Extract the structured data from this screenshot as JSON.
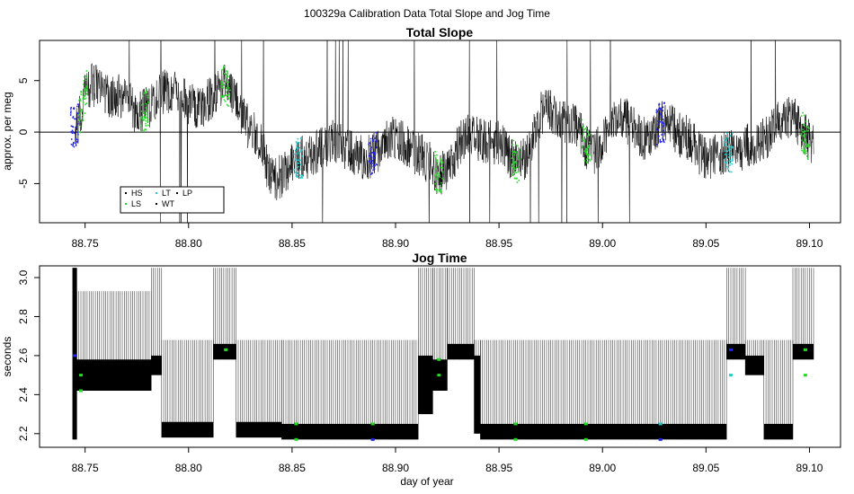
{
  "figure": {
    "title": "100329a   Calibration Data Total Slope and Jog Time",
    "xlabel": "day of year"
  },
  "chart_data": [
    {
      "type": "line",
      "title": "Total Slope",
      "ylabel": "approx. per meg",
      "xlim": [
        88.728,
        89.115
      ],
      "ylim": [
        -8.8,
        8.9
      ],
      "x_ticks": [
        88.75,
        88.8,
        88.85,
        88.9,
        88.95,
        89.0,
        89.05,
        89.1
      ],
      "x_tick_labels": [
        "88.75",
        "88.80",
        "88.85",
        "88.90",
        "88.95",
        "89.00",
        "89.05",
        "89.10"
      ],
      "y_ticks": [
        -5,
        0,
        5
      ],
      "y_tick_labels": [
        "-5",
        "0",
        "5"
      ],
      "reference_line_y": 0,
      "x_range": [
        88.745,
        89.102
      ],
      "trend_knots": {
        "x": [
          88.745,
          88.752,
          88.765,
          88.777,
          88.79,
          88.805,
          88.818,
          88.83,
          88.842,
          88.855,
          88.87,
          88.885,
          88.9,
          88.91,
          88.922,
          88.935,
          88.948,
          88.96,
          88.972,
          88.985,
          88.995,
          89.008,
          89.02,
          89.03,
          89.04,
          89.05,
          89.062,
          89.075,
          89.09,
          89.102
        ],
        "y": [
          0.5,
          4.5,
          3.5,
          2.0,
          4.0,
          2.5,
          4.5,
          0.5,
          -4.5,
          -2.5,
          -1.0,
          -2.5,
          -0.5,
          -2.0,
          -4.0,
          -0.5,
          -1.0,
          -3.0,
          2.0,
          1.0,
          -2.0,
          1.5,
          -0.5,
          1.0,
          -0.5,
          -2.5,
          -2.0,
          -1.0,
          1.5,
          -1.0
        ]
      },
      "noise_amplitude": 2.2,
      "legend": {
        "placement": "bottom-left",
        "entries": [
          {
            "label": "HS",
            "color": "#000000"
          },
          {
            "label": "LS",
            "color": "#22dd22"
          },
          {
            "label": "LT",
            "color": "#22cccc"
          },
          {
            "label": "WT",
            "color": "#000000"
          },
          {
            "label": "LP",
            "color": "#000000"
          }
        ]
      },
      "calibration_windows": [
        {
          "x": 88.745,
          "color": "#2222ee"
        },
        {
          "x": 88.749,
          "color": "#22dd22"
        },
        {
          "x": 88.779,
          "color": "#22dd22"
        },
        {
          "x": 88.818,
          "color": "#22dd22"
        },
        {
          "x": 88.853,
          "color": "#22cccc"
        },
        {
          "x": 88.889,
          "color": "#2222ee"
        },
        {
          "x": 88.921,
          "color": "#22dd22"
        },
        {
          "x": 88.958,
          "color": "#22dd22"
        },
        {
          "x": 88.992,
          "color": "#22dd22"
        },
        {
          "x": 89.028,
          "color": "#2222ee"
        },
        {
          "x": 89.061,
          "color": "#22cccc"
        },
        {
          "x": 89.098,
          "color": "#22dd22"
        }
      ]
    },
    {
      "type": "line",
      "title": "Jog Time",
      "ylabel": "seconds",
      "xlim": [
        88.728,
        89.115
      ],
      "ylim": [
        2.13,
        3.06
      ],
      "x_ticks": [
        88.75,
        88.8,
        88.85,
        88.9,
        88.95,
        89.0,
        89.05,
        89.1
      ],
      "x_tick_labels": [
        "88.75",
        "88.80",
        "88.85",
        "88.90",
        "88.95",
        "89.00",
        "89.05",
        "89.10"
      ],
      "y_ticks": [
        2.2,
        2.4,
        2.6,
        2.8,
        3.0
      ],
      "y_tick_labels": [
        "2.2",
        "2.4",
        "2.6",
        "2.8",
        "3.0"
      ],
      "segments": [
        {
          "x0": 88.744,
          "x1": 88.746,
          "band": [
            2.17,
            3.05
          ],
          "spike_top": 3.05
        },
        {
          "x0": 88.746,
          "x1": 88.782,
          "band": [
            2.42,
            2.58
          ],
          "spike_top": 2.93
        },
        {
          "x0": 88.782,
          "x1": 88.787,
          "band": [
            2.5,
            2.6
          ],
          "spike_top": 3.05
        },
        {
          "x0": 88.787,
          "x1": 88.812,
          "band": [
            2.18,
            2.26
          ],
          "spike_top": 2.68
        },
        {
          "x0": 88.812,
          "x1": 88.823,
          "band": [
            2.58,
            2.66
          ],
          "spike_top": 3.05
        },
        {
          "x0": 88.823,
          "x1": 88.845,
          "band": [
            2.18,
            2.26
          ],
          "spike_top": 2.68
        },
        {
          "x0": 88.845,
          "x1": 88.911,
          "band": [
            2.17,
            2.25
          ],
          "spike_top": 2.68
        },
        {
          "x0": 88.911,
          "x1": 88.918,
          "band": [
            2.3,
            2.6
          ],
          "spike_top": 3.05
        },
        {
          "x0": 88.918,
          "x1": 88.925,
          "band": [
            2.42,
            2.58
          ],
          "spike_top": 3.05
        },
        {
          "x0": 88.925,
          "x1": 88.938,
          "band": [
            2.58,
            2.66
          ],
          "spike_top": 3.05
        },
        {
          "x0": 88.938,
          "x1": 88.941,
          "band": [
            2.2,
            2.6
          ],
          "spike_top": 2.68
        },
        {
          "x0": 88.941,
          "x1": 89.06,
          "band": [
            2.17,
            2.25
          ],
          "spike_top": 2.68
        },
        {
          "x0": 89.06,
          "x1": 89.069,
          "band": [
            2.58,
            2.66
          ],
          "spike_top": 3.05
        },
        {
          "x0": 89.069,
          "x1": 89.078,
          "band": [
            2.5,
            2.6
          ],
          "spike_top": 2.68
        },
        {
          "x0": 89.078,
          "x1": 89.092,
          "band": [
            2.17,
            2.25
          ],
          "spike_top": 2.68
        },
        {
          "x0": 89.092,
          "x1": 89.102,
          "band": [
            2.58,
            2.66
          ],
          "spike_top": 3.05
        }
      ],
      "colored_points": [
        {
          "x": 88.745,
          "y": 2.6,
          "color": "#2222ee"
        },
        {
          "x": 88.748,
          "y": 2.5,
          "color": "#22dd22"
        },
        {
          "x": 88.748,
          "y": 2.42,
          "color": "#22dd22"
        },
        {
          "x": 88.818,
          "y": 2.63,
          "color": "#22dd22"
        },
        {
          "x": 88.852,
          "y": 2.17,
          "color": "#22dd22"
        },
        {
          "x": 88.852,
          "y": 2.25,
          "color": "#22dd22"
        },
        {
          "x": 88.889,
          "y": 2.17,
          "color": "#2222ee"
        },
        {
          "x": 88.889,
          "y": 2.25,
          "color": "#22dd22"
        },
        {
          "x": 88.921,
          "y": 2.5,
          "color": "#22dd22"
        },
        {
          "x": 88.921,
          "y": 2.58,
          "color": "#22dd22"
        },
        {
          "x": 88.958,
          "y": 2.17,
          "color": "#22dd22"
        },
        {
          "x": 88.958,
          "y": 2.25,
          "color": "#22dd22"
        },
        {
          "x": 88.992,
          "y": 2.17,
          "color": "#22dd22"
        },
        {
          "x": 88.992,
          "y": 2.25,
          "color": "#22dd22"
        },
        {
          "x": 89.028,
          "y": 2.17,
          "color": "#2222ee"
        },
        {
          "x": 89.028,
          "y": 2.25,
          "color": "#22cccc"
        },
        {
          "x": 89.062,
          "y": 2.5,
          "color": "#22cccc"
        },
        {
          "x": 89.062,
          "y": 2.63,
          "color": "#2222ee"
        },
        {
          "x": 89.098,
          "y": 2.5,
          "color": "#22dd22"
        },
        {
          "x": 89.098,
          "y": 2.63,
          "color": "#22dd22"
        }
      ]
    }
  ]
}
